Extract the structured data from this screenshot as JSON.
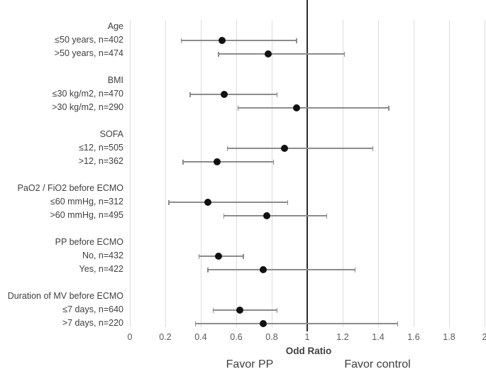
{
  "chart_data": {
    "type": "scatter",
    "subtype": "forest-plot",
    "title": "",
    "xlabel": "Odd Ratio",
    "xlim": [
      0,
      2
    ],
    "x_ticks": [
      0,
      0.2,
      0.4,
      0.6,
      0.8,
      1,
      1.2,
      1.4,
      1.6,
      1.8,
      2
    ],
    "x_tick_labels": [
      "0",
      "0.2",
      "0.4",
      "0.6",
      "0.8",
      "1",
      "1.2",
      "1.4",
      "1.6",
      "1.8",
      "2"
    ],
    "reference_line_x": 1,
    "grid": true,
    "annotations": {
      "left": "Favor PP",
      "right": "Favor control"
    },
    "colors": {
      "point": "#111111",
      "ci_line": "#8c8c8c",
      "gridline": "#dcdcdc",
      "reference_line": "#2b2b2b",
      "text": "#404040"
    },
    "groups": [
      {
        "header": "Age",
        "items": [
          {
            "label": "≤50 years, n=402",
            "or": 0.52,
            "ci_low": 0.29,
            "ci_high": 0.94
          },
          {
            "label": ">50 years, n=474",
            "or": 0.78,
            "ci_low": 0.5,
            "ci_high": 1.21
          }
        ]
      },
      {
        "header": "BMI",
        "items": [
          {
            "label": "≤30 kg/m2, n=470",
            "or": 0.53,
            "ci_low": 0.34,
            "ci_high": 0.83
          },
          {
            "label": ">30 kg/m2, n=290",
            "or": 0.94,
            "ci_low": 0.61,
            "ci_high": 1.46
          }
        ]
      },
      {
        "header": "SOFA",
        "items": [
          {
            "label": "≤12, n=505",
            "or": 0.87,
            "ci_low": 0.55,
            "ci_high": 1.37
          },
          {
            "label": ">12, n=362",
            "or": 0.49,
            "ci_low": 0.3,
            "ci_high": 0.81
          }
        ]
      },
      {
        "header": "PaO2 / FiO2 before ECMO",
        "items": [
          {
            "label": "≤60 mmHg, n=312",
            "or": 0.44,
            "ci_low": 0.22,
            "ci_high": 0.89
          },
          {
            "label": ">60 mmHg, n=495",
            "or": 0.77,
            "ci_low": 0.53,
            "ci_high": 1.11
          }
        ]
      },
      {
        "header": "PP before ECMO",
        "items": [
          {
            "label": "No, n=432",
            "or": 0.5,
            "ci_low": 0.39,
            "ci_high": 0.64
          },
          {
            "label": "Yes, n=422",
            "or": 0.75,
            "ci_low": 0.44,
            "ci_high": 1.27
          }
        ]
      },
      {
        "header": "Duration of MV before ECMO",
        "items": [
          {
            "label": "≤7 days, n=640",
            "or": 0.62,
            "ci_low": 0.47,
            "ci_high": 0.83
          },
          {
            "label": ">7 days, n=220",
            "or": 0.75,
            "ci_low": 0.37,
            "ci_high": 1.51
          }
        ]
      }
    ]
  }
}
